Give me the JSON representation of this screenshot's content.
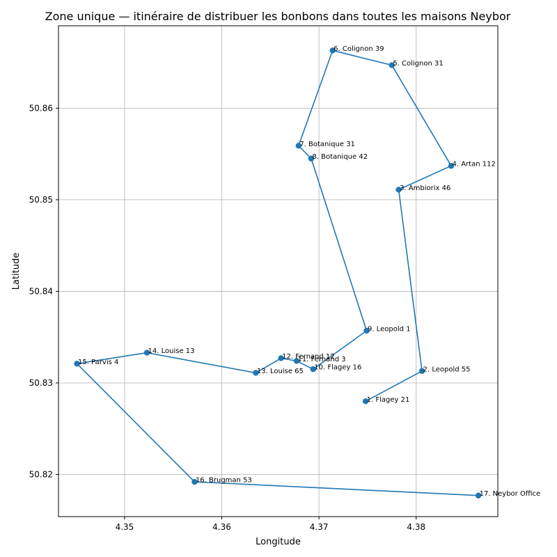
{
  "chart_data": {
    "type": "line",
    "title": "Zone unique — itinéraire de distribuer les bonbons dans toutes les maisons Neybor",
    "xlabel": "Longitude",
    "ylabel": "Latitude",
    "xlim": [
      4.3432,
      4.3884
    ],
    "ylim": [
      50.8154,
      50.869
    ],
    "grid": true,
    "color": "#1f77b4",
    "xticks": [
      4.35,
      4.36,
      4.37,
      4.38
    ],
    "xtick_labels": [
      "4.35",
      "4.36",
      "4.37",
      "4.38"
    ],
    "yticks": [
      50.82,
      50.83,
      50.84,
      50.85,
      50.86
    ],
    "ytick_labels": [
      "50.82",
      "50.83",
      "50.84",
      "50.85",
      "50.86"
    ],
    "points": [
      {
        "label": "1. Flagey 21",
        "x": 4.3748,
        "y": 50.828
      },
      {
        "label": "2. Leopold 55",
        "x": 4.3806,
        "y": 50.8313
      },
      {
        "label": "3. Ambiorix 46",
        "x": 4.3782,
        "y": 50.8511
      },
      {
        "label": "4. Artan 112",
        "x": 4.3836,
        "y": 50.8537
      },
      {
        "label": "5. Colignon 31",
        "x": 4.3775,
        "y": 50.8647
      },
      {
        "label": "6. Colignon 39",
        "x": 4.3714,
        "y": 50.8663
      },
      {
        "label": "7. Botanique 31",
        "x": 4.3679,
        "y": 50.8559
      },
      {
        "label": "8. Botanique 42",
        "x": 4.3692,
        "y": 50.8545
      },
      {
        "label": "9. Leopold 1",
        "x": 4.3749,
        "y": 50.8357
      },
      {
        "label": "10. Flagey 16",
        "x": 4.3694,
        "y": 50.8315
      },
      {
        "label": "11. Fernand 3",
        "x": 4.3677,
        "y": 50.8324
      },
      {
        "label": "12. Fernand 12",
        "x": 4.3661,
        "y": 50.8327
      },
      {
        "label": "13. Louise 65",
        "x": 4.3635,
        "y": 50.8311
      },
      {
        "label": "14. Louise 13",
        "x": 4.3523,
        "y": 50.8333
      },
      {
        "label": "15. Parvis 4",
        "x": 4.3451,
        "y": 50.8321
      },
      {
        "label": "16. Brugman 53",
        "x": 4.3572,
        "y": 50.8192
      },
      {
        "label": "17. Neybor Office",
        "x": 4.3864,
        "y": 50.8177
      }
    ]
  }
}
